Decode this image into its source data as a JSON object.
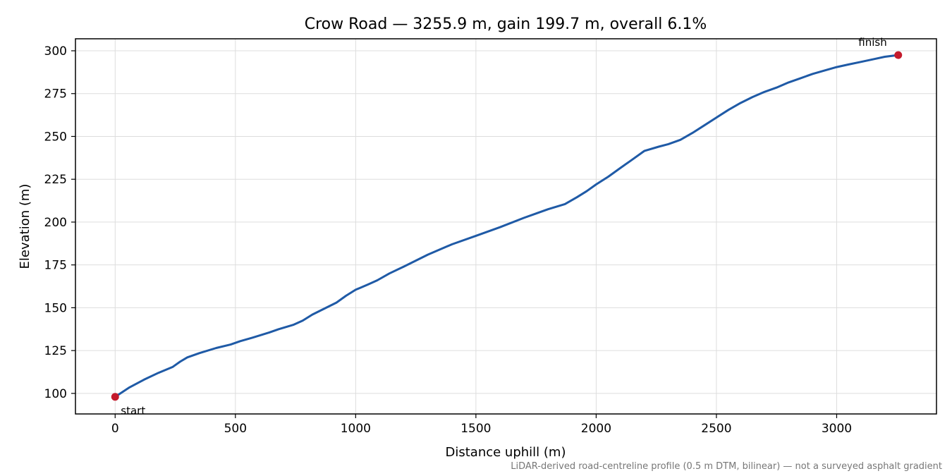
{
  "chart_data": {
    "type": "line",
    "title": "Crow Road — 3255.9 m, gain 199.7 m, overall 6.1%",
    "xlabel": "Distance uphill (m)",
    "ylabel": "Elevation (m)",
    "xlim": [
      -165,
      3415
    ],
    "ylim": [
      88,
      307
    ],
    "x_ticks": [
      0,
      500,
      1000,
      1500,
      2000,
      2500,
      3000
    ],
    "y_ticks": [
      100,
      125,
      150,
      175,
      200,
      225,
      250,
      275,
      300
    ],
    "grid": true,
    "series": [
      {
        "color": "#1f5aa6",
        "x": [
          0,
          60,
          120,
          180,
          240,
          270,
          300,
          350,
          420,
          480,
          520,
          570,
          640,
          680,
          740,
          780,
          820,
          870,
          920,
          960,
          1000,
          1050,
          1090,
          1140,
          1200,
          1300,
          1400,
          1500,
          1600,
          1700,
          1750,
          1800,
          1870,
          1920,
          1960,
          2000,
          2050,
          2100,
          2150,
          2200,
          2260,
          2300,
          2350,
          2400,
          2450,
          2500,
          2550,
          2600,
          2650,
          2700,
          2750,
          2800,
          2850,
          2900,
          2950,
          3000,
          3050,
          3100,
          3150,
          3200,
          3255.9
        ],
        "y": [
          98,
          103.5,
          108,
          112,
          115.5,
          118.5,
          121,
          123.5,
          126.5,
          128.5,
          130.5,
          132.5,
          135.5,
          137.5,
          140,
          142.5,
          146,
          149.5,
          153,
          157,
          160.5,
          163.5,
          166,
          170,
          174,
          181,
          187,
          192,
          197,
          202.5,
          205,
          207.5,
          210.5,
          214.5,
          218,
          222,
          226.5,
          231.5,
          236.5,
          241.5,
          244,
          245.5,
          248,
          252,
          256.5,
          261,
          265.5,
          269.5,
          273,
          276,
          278.5,
          281.5,
          284,
          286.5,
          288.5,
          290.5,
          292,
          293.5,
          295,
          296.5,
          297.5
        ]
      }
    ],
    "markers": [
      {
        "label": "start",
        "x": 0,
        "y": 98,
        "color": "#c41a2c"
      },
      {
        "label": "finish",
        "x": 3255.9,
        "y": 297.5,
        "color": "#c41a2c"
      }
    ]
  },
  "footnote": "LiDAR-derived road-centreline profile (0.5 m DTM, bilinear) — not a surveyed asphalt gradient"
}
